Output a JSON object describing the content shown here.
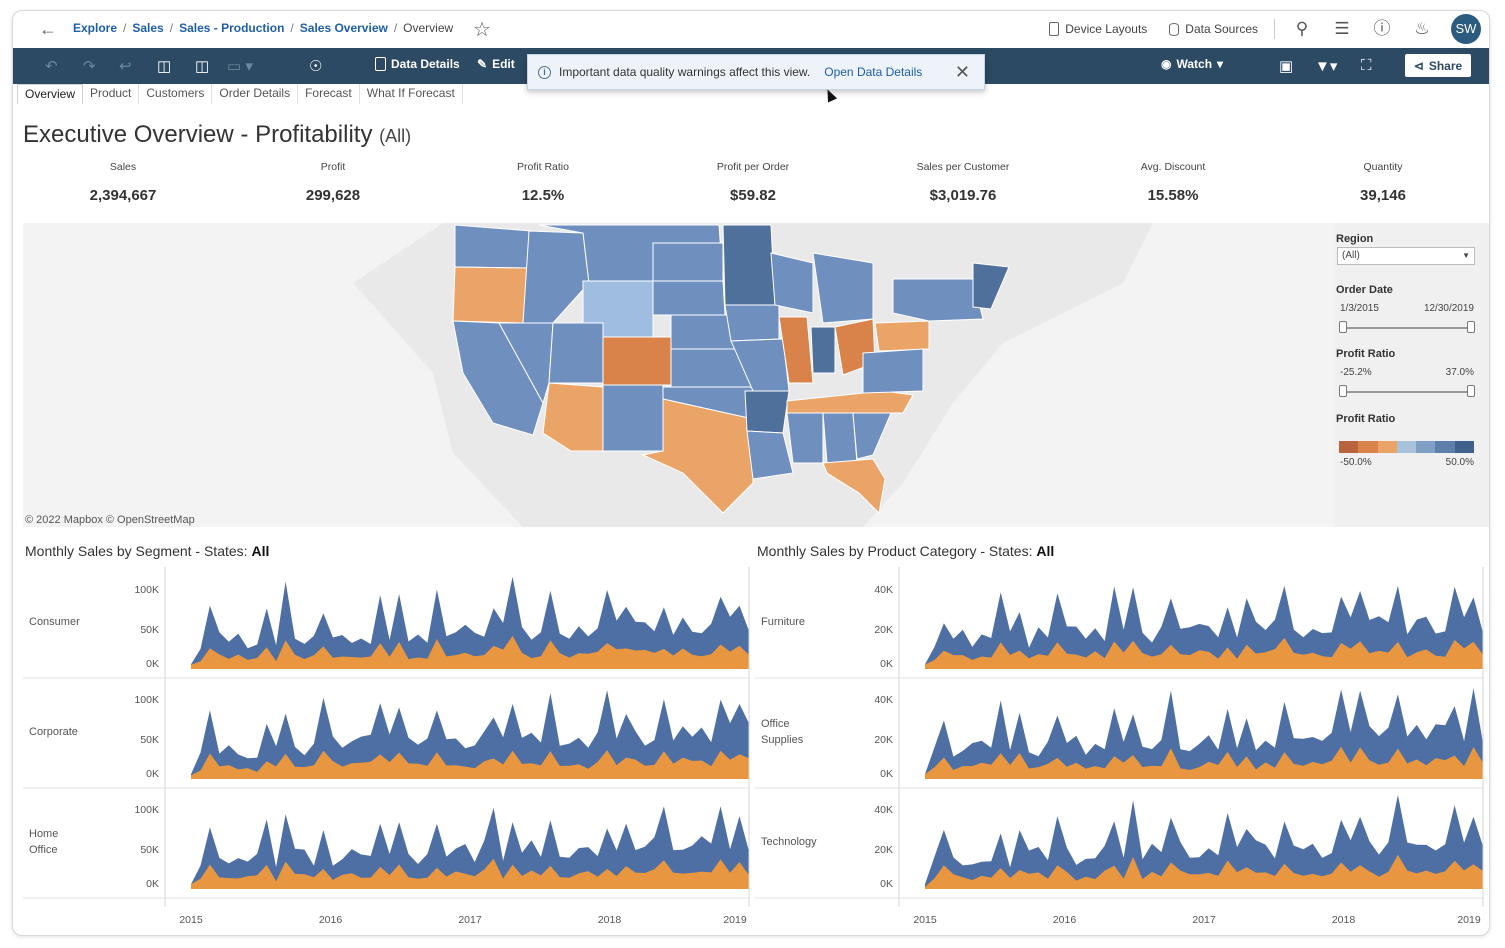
{
  "breadcrumb": [
    "Explore",
    "Sales",
    "Sales - Production",
    "Sales Overview"
  ],
  "breadcrumb_current": "Overview",
  "top_actions": {
    "device_layouts": "Device Layouts",
    "data_sources": "Data Sources",
    "avatar": "SW"
  },
  "toolbar": {
    "data_details": "Data Details",
    "edit": "Edit",
    "watch": "Watch",
    "share": "Share"
  },
  "notice": {
    "text": "Important data quality warnings affect this view.",
    "link": "Open Data Details"
  },
  "tabs": [
    "Overview",
    "Product",
    "Customers",
    "Order Details",
    "Forecast",
    "What If Forecast"
  ],
  "title": "Executive Overview - Profitability",
  "title_suffix": "(All)",
  "kpis": [
    {
      "label": "Sales",
      "value": "2,394,667"
    },
    {
      "label": "Profit",
      "value": "299,628"
    },
    {
      "label": "Profit Ratio",
      "value": "12.5%"
    },
    {
      "label": "Profit per Order",
      "value": "$59.82"
    },
    {
      "label": "Sales per Customer",
      "value": "$3,019.76"
    },
    {
      "label": "Avg. Discount",
      "value": "15.58%"
    },
    {
      "label": "Quantity",
      "value": "39,146"
    }
  ],
  "map": {
    "credit": "© 2022 Mapbox © OpenStreetMap"
  },
  "filters": {
    "region_label": "Region",
    "region_value": "(All)",
    "order_date_label": "Order Date",
    "order_date_min": "1/3/2015",
    "order_date_max": "12/30/2019",
    "profit_ratio_label": "Profit Ratio",
    "profit_ratio_min": "-25.2%",
    "profit_ratio_max": "37.0%",
    "legend_label": "Profit Ratio",
    "legend_min": "-50.0%",
    "legend_max": "50.0%",
    "legend_colors": [
      "#b8623e",
      "#d9824a",
      "#eba468",
      "#a9c2dc",
      "#7f9fc4",
      "#5d7fab",
      "#40608d"
    ]
  },
  "chart_data": [
    {
      "type": "area",
      "title": "Monthly Sales by Segment - States:",
      "title_value": "All",
      "x_ticks": [
        "2015",
        "2016",
        "2017",
        "2018",
        "2019"
      ],
      "y_ticks": [
        "100K",
        "50K",
        "0K"
      ],
      "ylim": [
        0,
        120000
      ],
      "rows": [
        "Consumer",
        "Corporate",
        "Home Office"
      ],
      "series_colors": [
        "#4e6fa3",
        "#e8963f"
      ]
    },
    {
      "type": "area",
      "title": "Monthly Sales by Product Category - States:",
      "title_value": "All",
      "x_ticks": [
        "2015",
        "2016",
        "2017",
        "2018",
        "2019"
      ],
      "y_ticks": [
        "40K",
        "20K",
        "0K"
      ],
      "ylim": [
        0,
        50000
      ],
      "rows": [
        "Furniture",
        "Office Supplies",
        "Technology"
      ],
      "series_colors": [
        "#4e6fa3",
        "#e8963f"
      ]
    }
  ]
}
